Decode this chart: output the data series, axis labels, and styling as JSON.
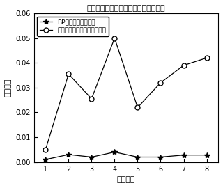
{
  "title": "各通道进口局部损失系数平均预测误差",
  "xlabel": "通道序号",
  "ylabel": "相对误差",
  "x": [
    1,
    2,
    3,
    4,
    5,
    6,
    7,
    8
  ],
  "bp_values": [
    0.001,
    0.003,
    0.002,
    0.004,
    0.002,
    0.002,
    0.0028,
    0.0028
  ],
  "ga_values": [
    0.005,
    0.0355,
    0.0255,
    0.05,
    0.022,
    0.032,
    0.039,
    0.042
  ],
  "bp_label": "BP神经网络平均误差",
  "ga_label": "遗传算法拟合关系式平均误差",
  "ylim": [
    0,
    0.06
  ],
  "yticks": [
    0,
    0.01,
    0.02,
    0.03,
    0.04,
    0.05,
    0.06
  ],
  "xticks": [
    1,
    2,
    3,
    4,
    5,
    6,
    7,
    8
  ],
  "line_color": "#000000",
  "bg_color": "#ffffff",
  "title_fontsize": 8,
  "label_fontsize": 8,
  "tick_fontsize": 7,
  "legend_fontsize": 6.5
}
